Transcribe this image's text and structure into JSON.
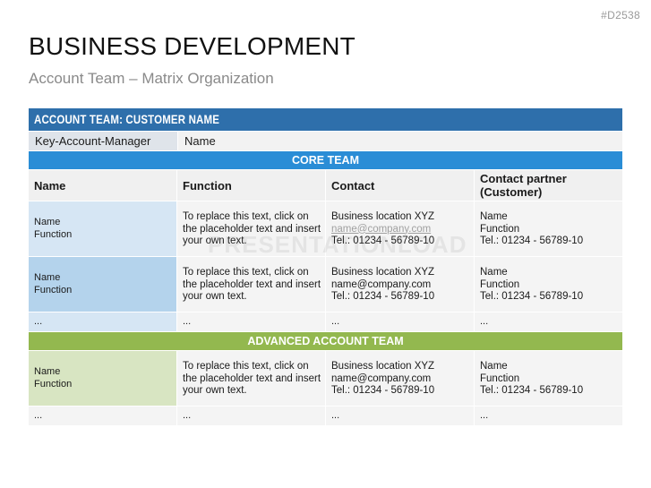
{
  "slide_id": "#D2538",
  "title": "BUSINESS DEVELOPMENT",
  "subtitle": "Account Team – Matrix Organization",
  "watermark": "PRESENTATIONLOAD",
  "table": {
    "header": "ACCOUNT TEAM: CUSTOMER NAME",
    "kam_label": "Key-Account-Manager",
    "kam_value": "Name",
    "core_band": "CORE TEAM",
    "columns": [
      "Name",
      "Function",
      "Contact",
      "Contact partner (Customer)"
    ],
    "core_rows": [
      {
        "name": "Name",
        "function": "Function",
        "desc": [
          "To replace this text, click on",
          "the placeholder text and insert",
          "your own text."
        ],
        "contact": [
          "Business location  XYZ",
          "name@company.com",
          "Tel.: 01234 - 56789-10"
        ],
        "partner": [
          "Name",
          "Function",
          "Tel.: 01234 - 56789-10"
        ]
      },
      {
        "name": "Name",
        "function": "Function",
        "desc": [
          "To replace this text, click on",
          "the placeholder text and insert",
          "your own text."
        ],
        "contact": [
          "Business location  XYZ",
          "name@company.com",
          "Tel.: 01234 - 56789-10"
        ],
        "partner": [
          "Name",
          "Function",
          "Tel.: 01234 - 56789-10"
        ]
      }
    ],
    "core_dots": [
      "...",
      "...",
      "...",
      "..."
    ],
    "advanced_band": "ADVANCED ACCOUNT TEAM",
    "advanced_rows": [
      {
        "name": "Name",
        "function": "Function",
        "desc": [
          "To replace this text, click on",
          "the placeholder text and insert",
          "your own text."
        ],
        "contact": [
          "Business location  XYZ",
          "name@company.com",
          "Tel.: 01234 - 56789-10"
        ],
        "partner": [
          "Name",
          "Function",
          "Tel.: 01234 - 56789-10"
        ]
      }
    ],
    "advanced_dots": [
      "...",
      "...",
      "...",
      "..."
    ]
  },
  "colors": {
    "header_blue": "#2e6fab",
    "core_band": "#2a8dd6",
    "advanced_band": "#93b84f"
  }
}
